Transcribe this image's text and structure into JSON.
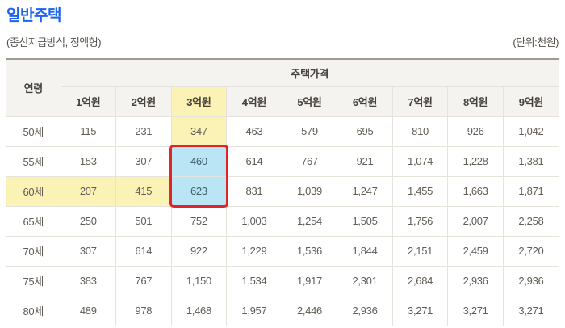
{
  "page": {
    "title": "일반주택",
    "subtitle": "(종신지급방식, 정액형)",
    "unit_note": "(단위:천원)"
  },
  "table": {
    "corner_header": "연령",
    "group_header": "주택가격",
    "col_headers": [
      "1억원",
      "2억원",
      "3억원",
      "4억원",
      "5억원",
      "6억원",
      "7억원",
      "8억원",
      "9억원"
    ],
    "rows": [
      {
        "label": "50세",
        "values": [
          "115",
          "231",
          "347",
          "463",
          "579",
          "695",
          "810",
          "926",
          "1,042"
        ]
      },
      {
        "label": "55세",
        "values": [
          "153",
          "307",
          "460",
          "614",
          "767",
          "921",
          "1,074",
          "1,228",
          "1,381"
        ]
      },
      {
        "label": "60세",
        "values": [
          "207",
          "415",
          "623",
          "831",
          "1,039",
          "1,247",
          "1,455",
          "1,663",
          "1,871"
        ]
      },
      {
        "label": "65세",
        "values": [
          "250",
          "501",
          "752",
          "1,003",
          "1,254",
          "1,505",
          "1,756",
          "2,007",
          "2,258"
        ]
      },
      {
        "label": "70세",
        "values": [
          "307",
          "614",
          "922",
          "1,229",
          "1,536",
          "1,844",
          "2,151",
          "2,459",
          "2,720"
        ]
      },
      {
        "label": "75세",
        "values": [
          "383",
          "767",
          "1,150",
          "1,534",
          "1,917",
          "2,301",
          "2,684",
          "2,936",
          "2,936"
        ]
      },
      {
        "label": "80세",
        "values": [
          "489",
          "978",
          "1,468",
          "1,957",
          "2,446",
          "2,936",
          "3,271",
          "3,271",
          "3,271"
        ]
      }
    ],
    "highlights": {
      "yellow_color": "#fbf2b5",
      "blue_color": "#b9e5f4",
      "red_border_color": "#e1232a",
      "yellow_header_cols": [
        2
      ],
      "yellow_value_cells": [
        [
          0,
          2
        ]
      ],
      "yellow_row_labels": [
        2
      ],
      "yellow_row_value_cells": [
        [
          2,
          0
        ],
        [
          2,
          1
        ]
      ],
      "blue_value_cells": [
        [
          1,
          2
        ],
        [
          2,
          2
        ]
      ]
    }
  },
  "chart_data": {
    "type": "table",
    "title": "일반주택",
    "subtitle": "(종신지급방식, 정액형)",
    "unit": "(단위:천원)",
    "row_header": "연령",
    "column_group": "주택가격",
    "columns": [
      "1억원",
      "2억원",
      "3억원",
      "4억원",
      "5억원",
      "6억원",
      "7억원",
      "8억원",
      "9억원"
    ],
    "rows": [
      {
        "label": "50세",
        "values": [
          115,
          231,
          347,
          463,
          579,
          695,
          810,
          926,
          1042
        ]
      },
      {
        "label": "55세",
        "values": [
          153,
          307,
          460,
          614,
          767,
          921,
          1074,
          1228,
          1381
        ]
      },
      {
        "label": "60세",
        "values": [
          207,
          415,
          623,
          831,
          1039,
          1247,
          1455,
          1663,
          1871
        ]
      },
      {
        "label": "65세",
        "values": [
          250,
          501,
          752,
          1003,
          1254,
          1505,
          1756,
          2007,
          2258
        ]
      },
      {
        "label": "70세",
        "values": [
          307,
          614,
          922,
          1229,
          1536,
          1844,
          2151,
          2459,
          2720
        ]
      },
      {
        "label": "75세",
        "values": [
          383,
          767,
          1150,
          1534,
          1917,
          2301,
          2684,
          2936,
          2936
        ]
      },
      {
        "label": "80세",
        "values": [
          489,
          978,
          1468,
          1957,
          2446,
          2936,
          3271,
          3271,
          3271
        ]
      }
    ],
    "annotations": {
      "highlighted_column": "3억원",
      "highlighted_row": "60세",
      "selected_cells": [
        {
          "row": "55세",
          "col": "3억원",
          "value": 460
        },
        {
          "row": "60세",
          "col": "3억원",
          "value": 623
        }
      ]
    }
  }
}
